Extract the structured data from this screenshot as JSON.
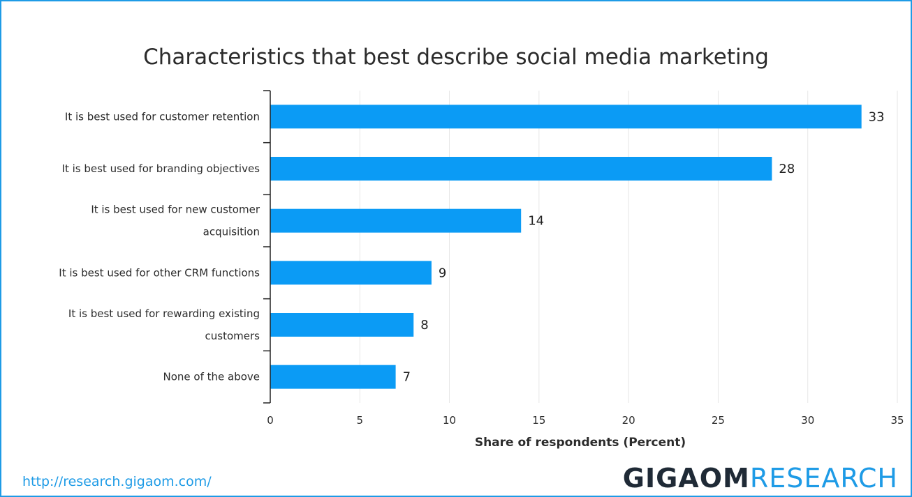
{
  "colors": {
    "bar": "#0b9bf5",
    "frame": "#1e9be6",
    "grid": "#e6e6e6",
    "brand_dark": "#1f2a36",
    "brand_blue": "#1e9be6"
  },
  "footer": {
    "source_url": "http://research.gigaom.com/",
    "brand_bold": "GIGAOM",
    "brand_light": "RESEARCH"
  },
  "chart_data": {
    "type": "bar",
    "orientation": "horizontal",
    "title": "Characteristics that best describe social media marketing",
    "xlabel": "Share of respondents (Percent)",
    "ylabel": "",
    "categories": [
      [
        "It is best used for customer retention"
      ],
      [
        "It is best used for branding objectives"
      ],
      [
        "It is best used for new customer",
        "acquisition"
      ],
      [
        "It is best used for other CRM functions"
      ],
      [
        "It is best used for rewarding existing",
        "customers"
      ],
      [
        "None of the above"
      ]
    ],
    "values": [
      33,
      28,
      14,
      9,
      8,
      7
    ],
    "xlim": [
      0,
      35
    ],
    "xticks": [
      0,
      5,
      10,
      15,
      20,
      25,
      30,
      35
    ],
    "grid": true,
    "legend": "none"
  }
}
